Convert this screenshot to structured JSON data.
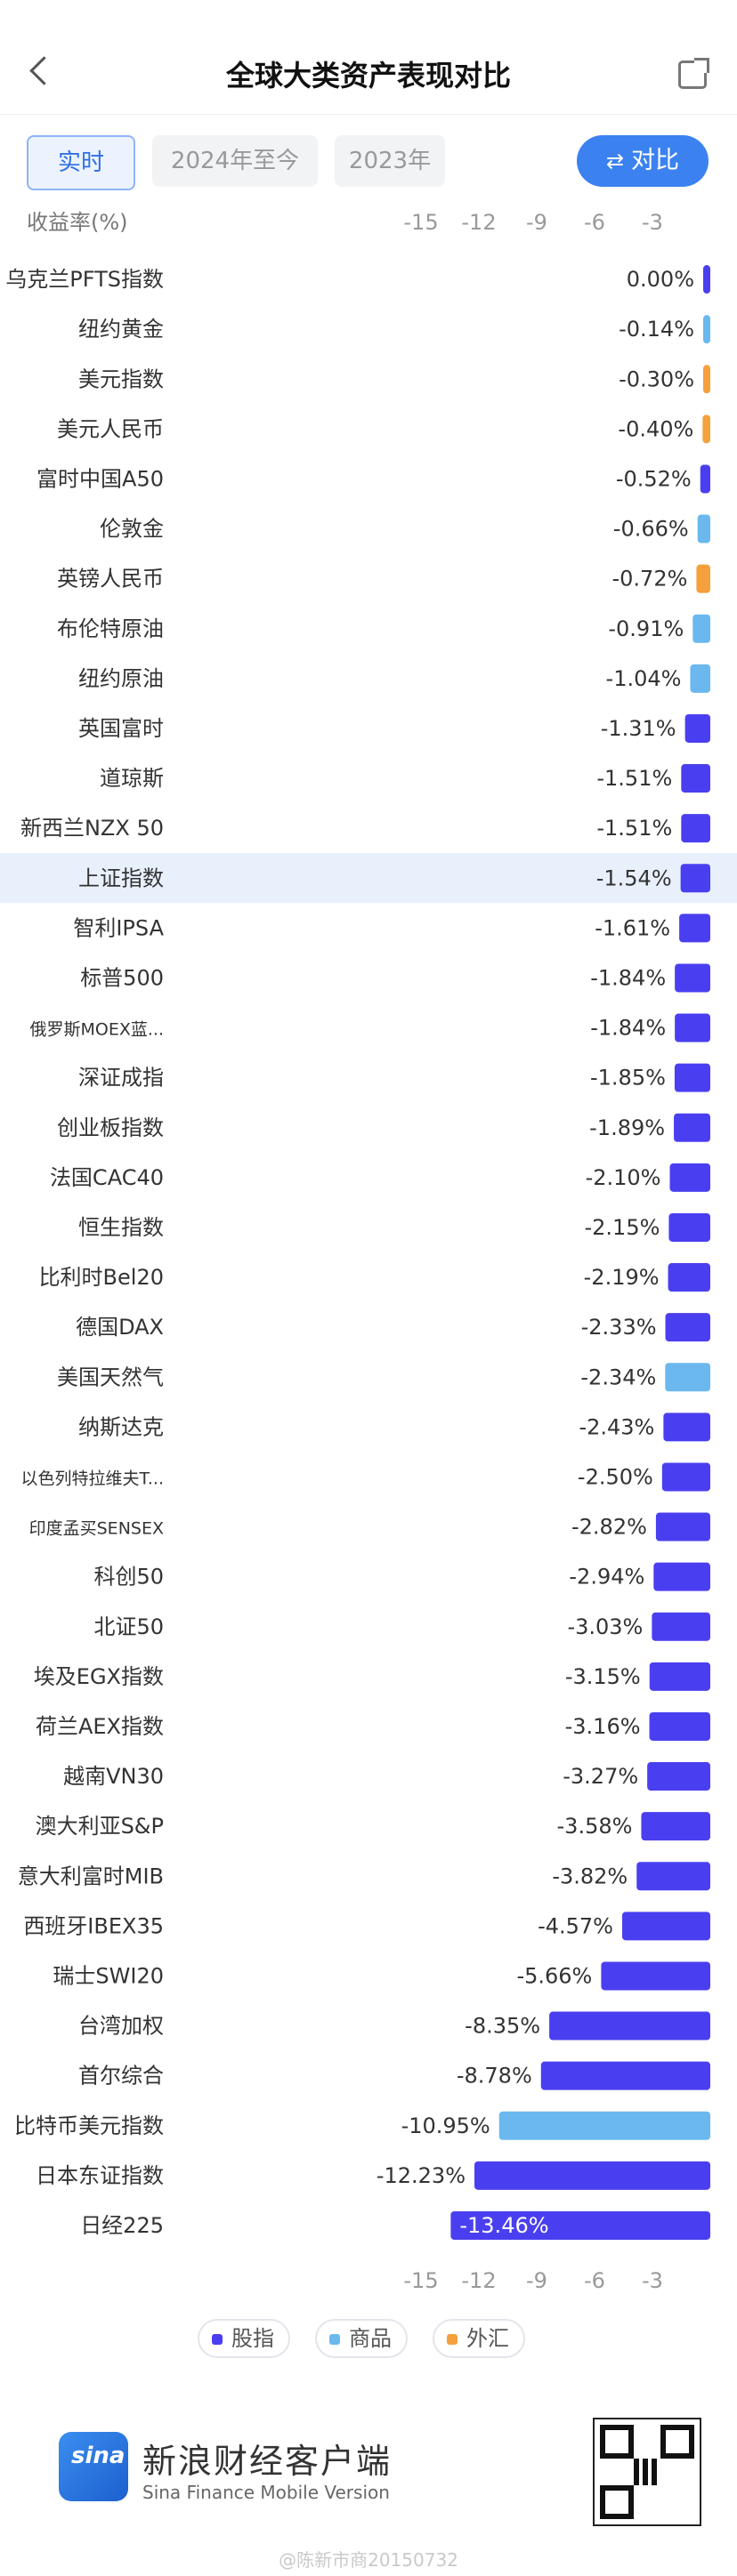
{
  "header": {
    "title": "全球大类资产表现对比"
  },
  "tabs": [
    {
      "label": "实时",
      "active": true
    },
    {
      "label": "2024年至今",
      "active": false
    },
    {
      "label": "2023年",
      "active": false
    }
  ],
  "compare_button": {
    "label": "对比",
    "icon": "swap-icon"
  },
  "chart_data": {
    "type": "bar",
    "orientation": "horizontal",
    "axis_label": "收益率(%)",
    "x_ticks": [
      -15,
      -12,
      -9,
      -6,
      -3
    ],
    "xlim": [
      -15.5,
      0
    ],
    "highlighted": "上证指数",
    "categories": [
      "乌克兰PFTS指数",
      "纽约黄金",
      "美元指数",
      "美元人民币",
      "富时中国A50",
      "伦敦金",
      "英镑人民币",
      "布伦特原油",
      "纽约原油",
      "英国富时",
      "道琼斯",
      "新西兰NZX 50",
      "上证指数",
      "智利IPSA",
      "标普500",
      "俄罗斯MOEX蓝...",
      "深证成指",
      "创业板指数",
      "法国CAC40",
      "恒生指数",
      "比利时Bel20",
      "德国DAX",
      "美国天然气",
      "纳斯达克",
      "以色列特拉维夫T...",
      "印度孟买SENSEX",
      "科创50",
      "北证50",
      "埃及EGX指数",
      "荷兰AEX指数",
      "越南VN30",
      "澳大利亚S&P",
      "意大利富时MIB",
      "西班牙IBEX35",
      "瑞士SWI20",
      "台湾加权",
      "首尔综合",
      "比特币美元指数",
      "日本东证指数",
      "日经225"
    ],
    "values": [
      0.0,
      -0.14,
      -0.3,
      -0.4,
      -0.52,
      -0.66,
      -0.72,
      -0.91,
      -1.04,
      -1.31,
      -1.51,
      -1.51,
      -1.54,
      -1.61,
      -1.84,
      -1.84,
      -1.85,
      -1.89,
      -2.1,
      -2.15,
      -2.19,
      -2.33,
      -2.34,
      -2.43,
      -2.5,
      -2.82,
      -2.94,
      -3.03,
      -3.15,
      -3.16,
      -3.27,
      -3.58,
      -3.82,
      -4.57,
      -5.66,
      -8.35,
      -8.78,
      -10.95,
      -12.23,
      -13.46
    ],
    "value_labels": [
      "0.00%",
      "-0.14%",
      "-0.30%",
      "-0.40%",
      "-0.52%",
      "-0.66%",
      "-0.72%",
      "-0.91%",
      "-1.04%",
      "-1.31%",
      "-1.51%",
      "-1.51%",
      "-1.54%",
      "-1.61%",
      "-1.84%",
      "-1.84%",
      "-1.85%",
      "-1.89%",
      "-2.10%",
      "-2.15%",
      "-2.19%",
      "-2.33%",
      "-2.34%",
      "-2.43%",
      "-2.50%",
      "-2.82%",
      "-2.94%",
      "-3.03%",
      "-3.15%",
      "-3.16%",
      "-3.27%",
      "-3.58%",
      "-3.82%",
      "-4.57%",
      "-5.66%",
      "-8.35%",
      "-8.78%",
      "-10.95%",
      "-12.23%",
      "-13.46%"
    ],
    "asset_class": [
      "股指",
      "商品",
      "外汇",
      "外汇",
      "股指",
      "商品",
      "外汇",
      "商品",
      "商品",
      "股指",
      "股指",
      "股指",
      "股指",
      "股指",
      "股指",
      "股指",
      "股指",
      "股指",
      "股指",
      "股指",
      "股指",
      "股指",
      "商品",
      "股指",
      "股指",
      "股指",
      "股指",
      "股指",
      "股指",
      "股指",
      "股指",
      "股指",
      "股指",
      "股指",
      "股指",
      "股指",
      "股指",
      "商品",
      "股指",
      "股指"
    ],
    "legend": [
      {
        "name": "股指",
        "color": "#4a3ff0"
      },
      {
        "name": "商品",
        "color": "#6ab8ee"
      },
      {
        "name": "外汇",
        "color": "#f5a03c"
      }
    ]
  },
  "footer": {
    "brand_name": "新浪财经客户端",
    "brand_en": "Sina Finance Mobile Version",
    "logo_text": "sina",
    "watermark": "@陈新市商20150732"
  }
}
